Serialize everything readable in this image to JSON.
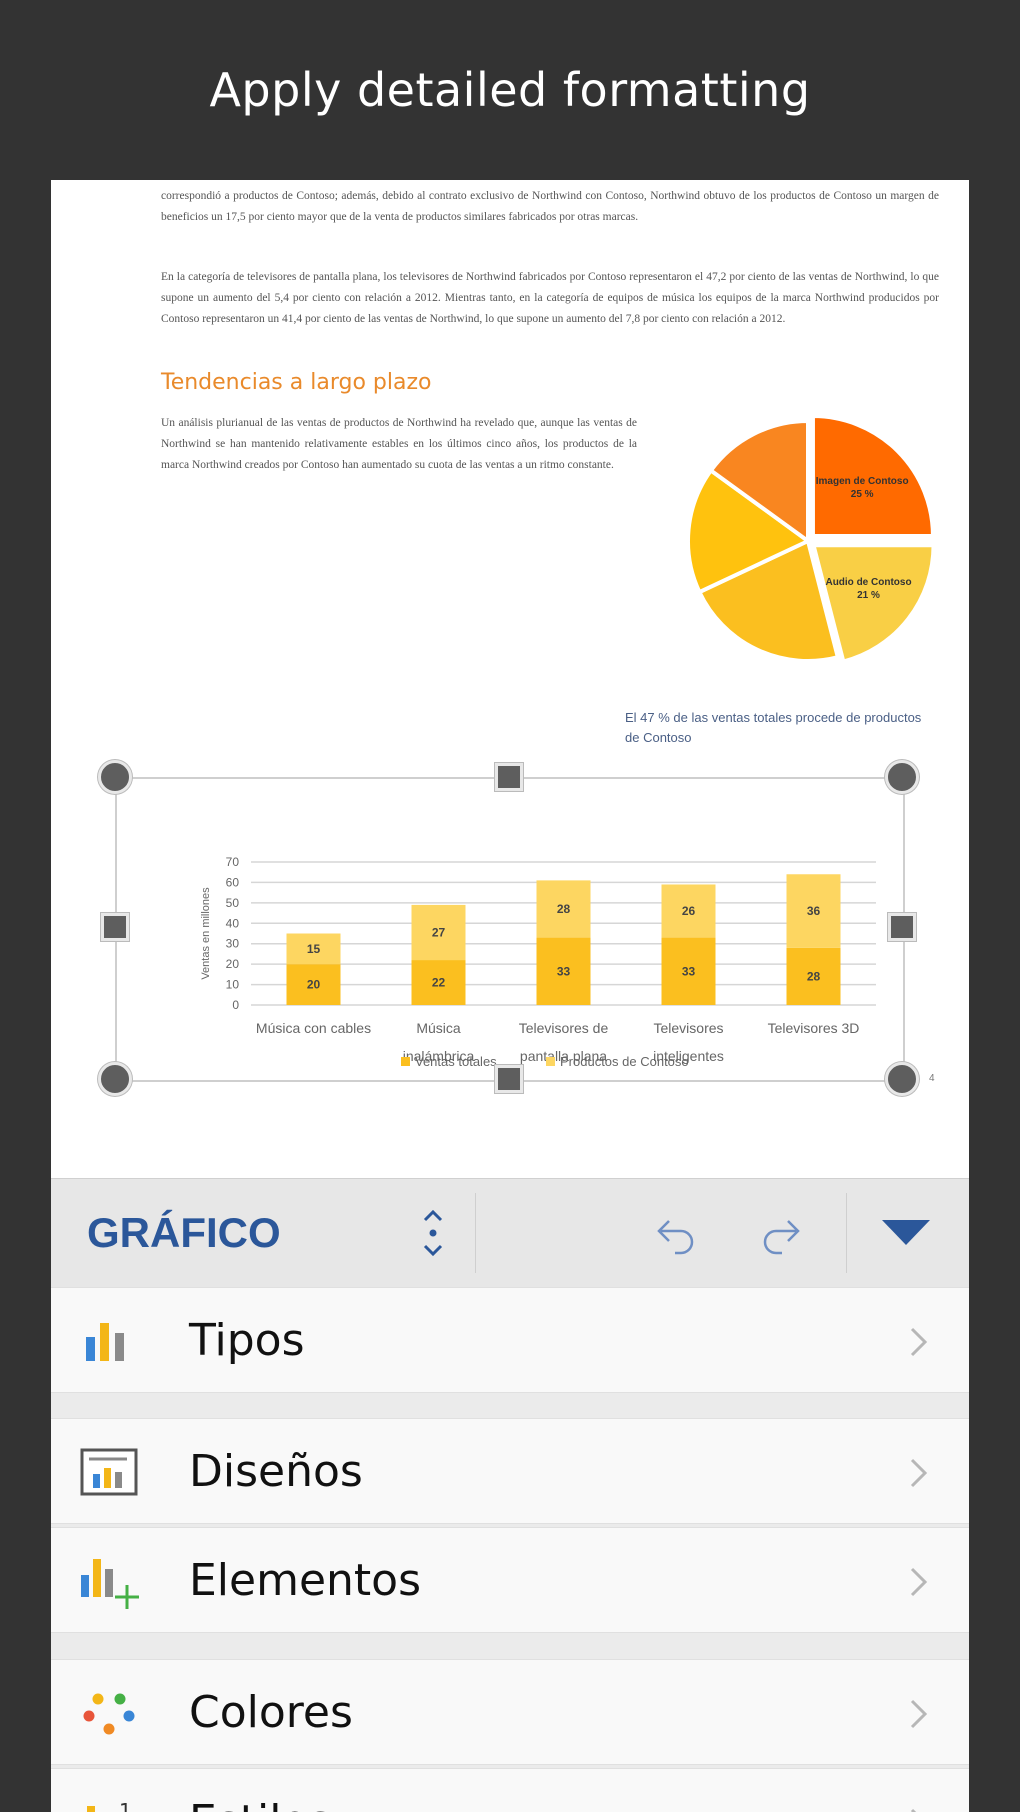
{
  "banner": {
    "title": "Apply detailed formatting"
  },
  "document": {
    "paragraph1": "correspondió a productos de Contoso; además, debido al contrato exclusivo de Northwind con Contoso, Northwind obtuvo de los productos de Contoso un margen de beneficios un 17,5 por ciento mayor que de la venta de productos similares fabricados por otras marcas.",
    "paragraph2": "En la categoría de televisores de pantalla plana, los televisores de Northwind fabricados por Contoso representaron el 47,2 por ciento de las ventas de Northwind, lo que supone un aumento del 5,4 por ciento con relación a 2012. Mientras tanto, en la categoría de equipos de música los equipos de la marca Northwind producidos por Contoso representaron un 41,4 por ciento de las ventas de Northwind, lo que supone un aumento del 7,8 por ciento con relación a 2012.",
    "heading": "Tendencias a largo plazo",
    "paragraph3": "Un análisis plurianual de las ventas de productos de Northwind ha revelado que, aunque las ventas de Northwind se han mantenido relativamente estables en los últimos cinco años, los productos de la marca Northwind creados por Contoso han aumentado su cuota de las ventas a un ritmo constante.",
    "pie_caption": "El 47 % de las ventas totales procede de productos de Contoso",
    "footnote": "4"
  },
  "chart_data": [
    {
      "type": "pie",
      "slices": [
        {
          "label": "Imagen de Contoso",
          "value": 25,
          "display": "25 %",
          "color": "#ff6a00"
        },
        {
          "label": "Audio de Contoso",
          "value": 21,
          "display": "21 %",
          "color": "#f9cf45"
        },
        {
          "label": "",
          "value": 22,
          "color": "#fbbf1f"
        },
        {
          "label": "",
          "value": 17,
          "color": "#ffc20e"
        },
        {
          "label": "",
          "value": 15,
          "color": "#f98620"
        }
      ]
    },
    {
      "type": "bar",
      "stacked": true,
      "categories": [
        [
          "Música con cables"
        ],
        [
          "Música",
          "inalámbrica"
        ],
        [
          "Televisores de",
          "pantalla plana"
        ],
        [
          "Televisores",
          "inteligentes"
        ],
        [
          "Televisores 3D"
        ]
      ],
      "series": [
        {
          "name": "Ventas totales",
          "values": [
            20,
            22,
            33,
            33,
            28
          ],
          "color": "#fbbf1f"
        },
        {
          "name": "Productos de Contoso",
          "values": [
            15,
            27,
            28,
            26,
            36
          ],
          "color": "#fdd661"
        }
      ],
      "ylabel": "Ventas en millones",
      "ylim": [
        0,
        70
      ],
      "yticks": [
        0,
        10,
        20,
        30,
        40,
        50,
        60,
        70
      ],
      "grid": true,
      "legend": "bottom"
    }
  ],
  "toolbar": {
    "title": "GRÁFICO",
    "icons": [
      "updown-arrows-icon",
      "undo-icon",
      "redo-icon",
      "collapse-triangle-icon"
    ],
    "accent": "#2b579a"
  },
  "menu": {
    "items": [
      {
        "label": "Tipos",
        "icon": "chart-types-icon"
      },
      {
        "label": "Diseños",
        "icon": "chart-layouts-icon"
      },
      {
        "label": "Elementos",
        "icon": "chart-elements-icon"
      },
      {
        "label": "Colores",
        "icon": "chart-colors-icon"
      },
      {
        "label": "Estilos",
        "icon": "chart-styles-icon"
      }
    ]
  }
}
